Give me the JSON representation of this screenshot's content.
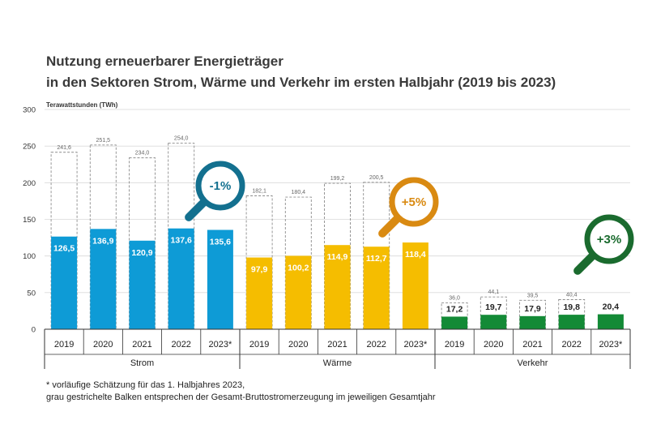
{
  "title_line1": "Nutzung erneuerbarer Energieträger",
  "title_line2": "in den Sektoren Strom, Wärme und Verkehr im ersten Halbjahr (2019 bis 2023)",
  "footnote_line1": "* vorläufige Schätzung für das 1. Halbjahres 2023,",
  "footnote_line2": "grau gestrichelte Balken entsprechen der Gesamt-Bruttostromerzeugung im jeweiligen Gesamtjahr",
  "colors": {
    "strom": "#0e9bd6",
    "waerme": "#f5bd00",
    "verkehr": "#138a36",
    "title": "#3a3a3a"
  },
  "chart_data": {
    "type": "bar",
    "ylabel": "Terawattstunden (TWh)",
    "ylim": [
      0,
      300
    ],
    "yticks": [
      "0",
      "50",
      "100",
      "150",
      "200",
      "250",
      "300"
    ],
    "categories": [
      "2019",
      "2020",
      "2021",
      "2022",
      "2023*"
    ],
    "groups": [
      {
        "name": "Strom",
        "color_key": "strom",
        "values": [
          126.5,
          136.9,
          120.9,
          137.6,
          135.6
        ],
        "value_labels": [
          "126,5",
          "136,9",
          "120,9",
          "137,6",
          "135,6"
        ],
        "gross": [
          241.6,
          251.5,
          234.0,
          254.0,
          null
        ],
        "gross_labels": [
          "241,6",
          "251,5",
          "234,0",
          "254,0",
          ""
        ],
        "badge": {
          "label": "-1%",
          "color": "#13708f"
        }
      },
      {
        "name": "Wärme",
        "color_key": "waerme",
        "values": [
          97.9,
          100.2,
          114.9,
          112.7,
          118.4
        ],
        "value_labels": [
          "97,9",
          "100,2",
          "114,9",
          "112,7",
          "118,4"
        ],
        "gross": [
          182.1,
          180.4,
          199.2,
          200.5,
          null
        ],
        "gross_labels": [
          "182,1",
          "180,4",
          "199,2",
          "200,5",
          ""
        ],
        "badge": {
          "label": "+5%",
          "color": "#d98a12"
        }
      },
      {
        "name": "Verkehr",
        "color_key": "verkehr",
        "values": [
          17.2,
          19.7,
          17.9,
          19.8,
          20.4
        ],
        "value_labels": [
          "17,2",
          "19,7",
          "17,9",
          "19,8",
          "20,4"
        ],
        "gross": [
          36.0,
          44.1,
          39.5,
          40.4,
          null
        ],
        "gross_labels": [
          "36,0",
          "44,1",
          "39,5",
          "40,4",
          ""
        ],
        "badge": {
          "label": "+3%",
          "color": "#1a6b2e"
        }
      }
    ]
  }
}
